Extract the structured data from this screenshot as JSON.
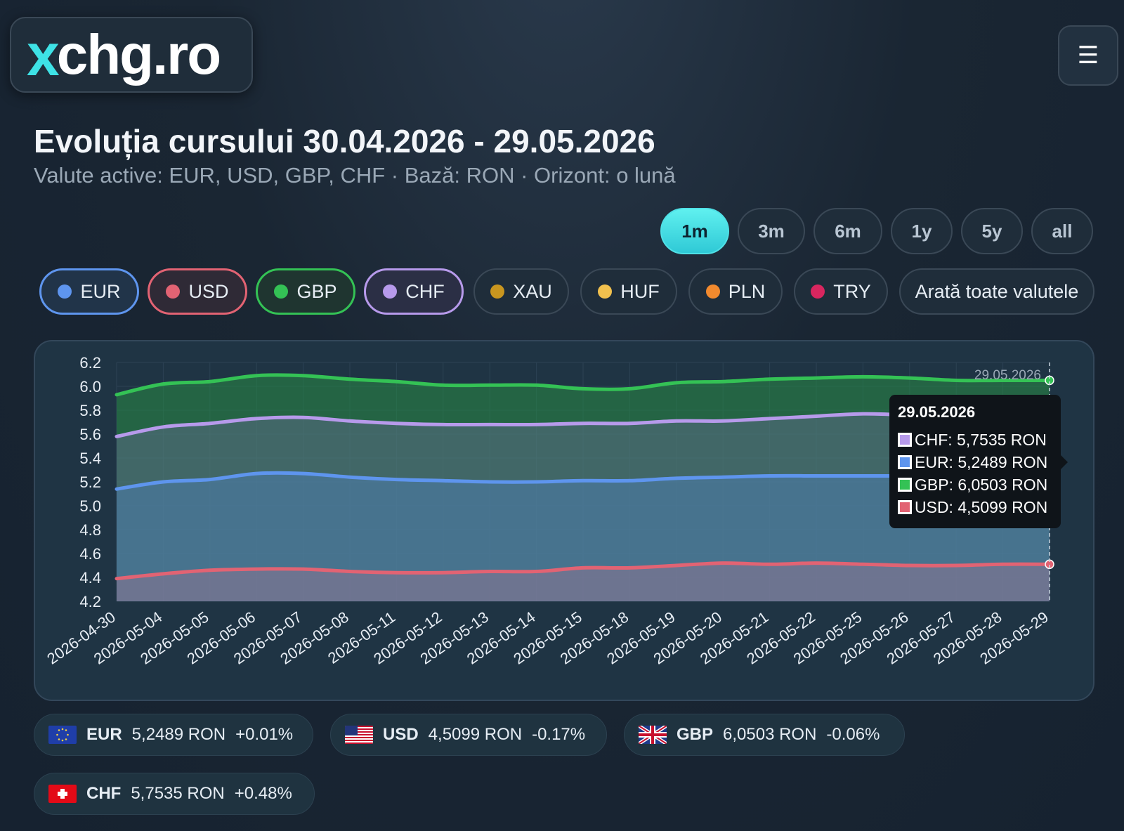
{
  "logo": {
    "x": "x",
    "rest": "chg.ro"
  },
  "header": {
    "title": "Evoluția cursului 30.04.2026 - 29.05.2026",
    "subtitle": "Valute active: EUR, USD, GBP, CHF · Bază: RON · Orizont: o lună"
  },
  "menu_icon": "hamburger-icon",
  "ranges": [
    "1m",
    "3m",
    "6m",
    "1y",
    "5y",
    "all"
  ],
  "active_range": "1m",
  "currencies": [
    {
      "code": "EUR",
      "color": "#5e95ee",
      "active": true
    },
    {
      "code": "USD",
      "color": "#e26373",
      "active": true
    },
    {
      "code": "GBP",
      "color": "#34c255",
      "active": true
    },
    {
      "code": "CHF",
      "color": "#b79aeb",
      "active": true
    },
    {
      "code": "XAU",
      "color": "#c9961f",
      "active": false
    },
    {
      "code": "HUF",
      "color": "#f2c14e",
      "active": false
    },
    {
      "code": "PLN",
      "color": "#f28a2e",
      "active": false
    },
    {
      "code": "TRY",
      "color": "#d8265f",
      "active": false
    }
  ],
  "show_all_label": "Arată toate valutele",
  "chart_data": {
    "type": "area",
    "x": [
      "2026-04-30",
      "2026-05-04",
      "2026-05-05",
      "2026-05-06",
      "2026-05-07",
      "2026-05-08",
      "2026-05-11",
      "2026-05-12",
      "2026-05-13",
      "2026-05-14",
      "2026-05-15",
      "2026-05-18",
      "2026-05-19",
      "2026-05-20",
      "2026-05-21",
      "2026-05-22",
      "2026-05-25",
      "2026-05-26",
      "2026-05-27",
      "2026-05-28",
      "2026-05-29"
    ],
    "ylim": [
      4.2,
      6.2
    ],
    "yticks": [
      "6.2",
      "6.0",
      "5.8",
      "5.6",
      "5.4",
      "5.2",
      "5.0",
      "4.8",
      "4.6",
      "4.4",
      "4.2"
    ],
    "series": [
      {
        "name": "GBP",
        "color": "#34c255",
        "values": [
          5.93,
          6.02,
          6.04,
          6.09,
          6.09,
          6.06,
          6.04,
          6.01,
          6.01,
          6.01,
          5.98,
          5.98,
          6.03,
          6.04,
          6.06,
          6.07,
          6.08,
          6.07,
          6.05,
          6.05,
          6.05
        ]
      },
      {
        "name": "CHF",
        "color": "#b79aeb",
        "values": [
          5.58,
          5.66,
          5.69,
          5.73,
          5.74,
          5.71,
          5.69,
          5.68,
          5.68,
          5.68,
          5.69,
          5.69,
          5.71,
          5.71,
          5.73,
          5.75,
          5.77,
          5.76,
          5.75,
          5.75,
          5.75
        ]
      },
      {
        "name": "EUR",
        "color": "#5e95ee",
        "values": [
          5.14,
          5.2,
          5.22,
          5.27,
          5.27,
          5.24,
          5.22,
          5.21,
          5.2,
          5.2,
          5.21,
          5.21,
          5.23,
          5.24,
          5.25,
          5.25,
          5.25,
          5.25,
          5.25,
          5.25,
          5.25
        ]
      },
      {
        "name": "USD",
        "color": "#e26373",
        "values": [
          4.39,
          4.43,
          4.46,
          4.47,
          4.47,
          4.45,
          4.44,
          4.44,
          4.45,
          4.45,
          4.48,
          4.48,
          4.5,
          4.52,
          4.51,
          4.52,
          4.51,
          4.5,
          4.5,
          4.51,
          4.51
        ]
      }
    ],
    "hover_label": "29.05.2026",
    "tooltip": {
      "title": "29.05.2026",
      "rows": [
        {
          "text": "CHF: 5,7535 RON",
          "color": "#b79aeb"
        },
        {
          "text": "EUR: 5,2489 RON",
          "color": "#5e95ee"
        },
        {
          "text": "GBP: 6,0503 RON",
          "color": "#34c255"
        },
        {
          "text": "USD: 4,5099 RON",
          "color": "#e26373"
        }
      ]
    }
  },
  "summary": [
    {
      "code": "EUR",
      "value": "5,2489 RON",
      "change": "+0.01%",
      "flag": "eu-flag"
    },
    {
      "code": "USD",
      "value": "4,5099 RON",
      "change": "-0.17%",
      "flag": "us-flag"
    },
    {
      "code": "GBP",
      "value": "6,0503 RON",
      "change": "-0.06%",
      "flag": "uk-flag"
    },
    {
      "code": "CHF",
      "value": "5,7535 RON",
      "change": "+0.48%",
      "flag": "ch-flag"
    }
  ]
}
